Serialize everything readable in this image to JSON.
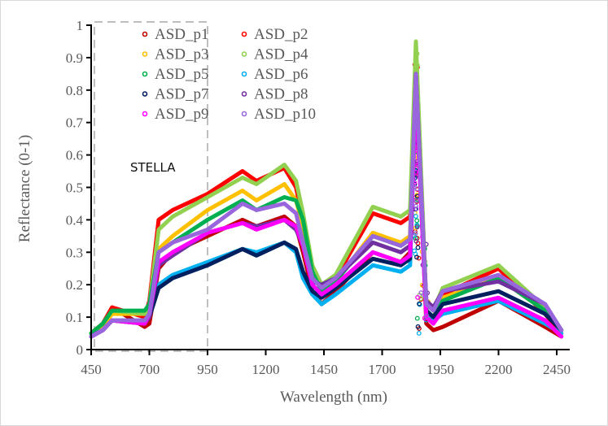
{
  "chart_data": {
    "type": "line",
    "xlabel": "Wavelength (nm)",
    "ylabel": "Reflectance (0-1)",
    "xlim": [
      450,
      2500
    ],
    "ylim": [
      0,
      1
    ],
    "xticks": [
      450,
      700,
      950,
      1200,
      1450,
      1700,
      1950,
      2200,
      2450
    ],
    "yticks": [
      0,
      0.1,
      0.2,
      0.3,
      0.4,
      0.5,
      0.6,
      0.7,
      0.8,
      0.9,
      1
    ],
    "grid": false,
    "legend_position": "top-left",
    "annotation": "STELLA",
    "annotation_box_x_range": [
      460,
      940
    ],
    "x": [
      450,
      500,
      540,
      680,
      700,
      740,
      800,
      950,
      1100,
      1160,
      1280,
      1330,
      1360,
      1400,
      1440,
      1500,
      1660,
      1780,
      1820,
      1845,
      1890,
      1920,
      1960,
      2200,
      2400,
      2470
    ],
    "series": [
      {
        "name": "ASD_p1",
        "color": "#c00000",
        "values": [
          0.05,
          0.08,
          0.13,
          0.07,
          0.08,
          0.25,
          0.3,
          0.35,
          0.4,
          0.38,
          0.41,
          0.38,
          0.3,
          0.18,
          0.14,
          0.18,
          0.3,
          0.27,
          0.3,
          0.85,
          0.08,
          0.06,
          0.07,
          0.15,
          0.07,
          0.04
        ]
      },
      {
        "name": "ASD_p2",
        "color": "#ff0000",
        "values": [
          0.05,
          0.08,
          0.13,
          0.1,
          0.15,
          0.4,
          0.43,
          0.48,
          0.55,
          0.52,
          0.56,
          0.5,
          0.4,
          0.25,
          0.18,
          0.22,
          0.42,
          0.39,
          0.41,
          0.9,
          0.1,
          0.08,
          0.17,
          0.25,
          0.11,
          0.05
        ]
      },
      {
        "name": "ASD_p3",
        "color": "#ffc000",
        "values": [
          0.05,
          0.07,
          0.11,
          0.11,
          0.14,
          0.31,
          0.35,
          0.43,
          0.49,
          0.46,
          0.51,
          0.46,
          0.38,
          0.24,
          0.18,
          0.21,
          0.36,
          0.33,
          0.35,
          0.88,
          0.12,
          0.1,
          0.16,
          0.22,
          0.12,
          0.06
        ]
      },
      {
        "name": "ASD_p4",
        "color": "#92d050",
        "values": [
          0.05,
          0.08,
          0.12,
          0.11,
          0.14,
          0.37,
          0.41,
          0.47,
          0.53,
          0.51,
          0.57,
          0.52,
          0.42,
          0.26,
          0.2,
          0.23,
          0.44,
          0.41,
          0.43,
          0.95,
          0.14,
          0.12,
          0.19,
          0.26,
          0.13,
          0.06
        ]
      },
      {
        "name": "ASD_p5",
        "color": "#00b050",
        "values": [
          0.05,
          0.08,
          0.12,
          0.12,
          0.14,
          0.3,
          0.33,
          0.4,
          0.46,
          0.43,
          0.47,
          0.46,
          0.4,
          0.24,
          0.18,
          0.21,
          0.35,
          0.32,
          0.34,
          0.8,
          0.12,
          0.1,
          0.15,
          0.22,
          0.12,
          0.06
        ]
      },
      {
        "name": "ASD_p6",
        "color": "#00b0f0",
        "values": [
          0.04,
          0.06,
          0.09,
          0.09,
          0.1,
          0.2,
          0.23,
          0.27,
          0.31,
          0.3,
          0.33,
          0.3,
          0.22,
          0.17,
          0.14,
          0.17,
          0.26,
          0.24,
          0.26,
          0.8,
          0.1,
          0.09,
          0.11,
          0.15,
          0.08,
          0.05
        ]
      },
      {
        "name": "ASD_p7",
        "color": "#002060",
        "values": [
          0.04,
          0.06,
          0.09,
          0.08,
          0.1,
          0.19,
          0.22,
          0.26,
          0.31,
          0.29,
          0.33,
          0.31,
          0.24,
          0.18,
          0.16,
          0.19,
          0.28,
          0.26,
          0.28,
          0.85,
          0.12,
          0.1,
          0.14,
          0.18,
          0.11,
          0.06
        ]
      },
      {
        "name": "ASD_p8",
        "color": "#7030a0",
        "values": [
          0.04,
          0.06,
          0.09,
          0.08,
          0.1,
          0.26,
          0.29,
          0.36,
          0.39,
          0.38,
          0.4,
          0.37,
          0.32,
          0.21,
          0.2,
          0.22,
          0.33,
          0.3,
          0.32,
          0.8,
          0.15,
          0.13,
          0.18,
          0.21,
          0.14,
          0.06
        ]
      },
      {
        "name": "ASD_p9",
        "color": "#ff00ff",
        "values": [
          0.04,
          0.06,
          0.09,
          0.08,
          0.11,
          0.27,
          0.3,
          0.36,
          0.39,
          0.37,
          0.4,
          0.38,
          0.32,
          0.2,
          0.17,
          0.2,
          0.3,
          0.27,
          0.29,
          0.8,
          0.1,
          0.08,
          0.12,
          0.16,
          0.09,
          0.04
        ]
      },
      {
        "name": "ASD_p10",
        "color": "#9966dd",
        "values": [
          0.04,
          0.06,
          0.09,
          0.09,
          0.11,
          0.3,
          0.33,
          0.37,
          0.45,
          0.43,
          0.45,
          0.42,
          0.33,
          0.22,
          0.19,
          0.22,
          0.35,
          0.32,
          0.34,
          0.85,
          0.14,
          0.12,
          0.18,
          0.23,
          0.14,
          0.06
        ]
      }
    ]
  }
}
